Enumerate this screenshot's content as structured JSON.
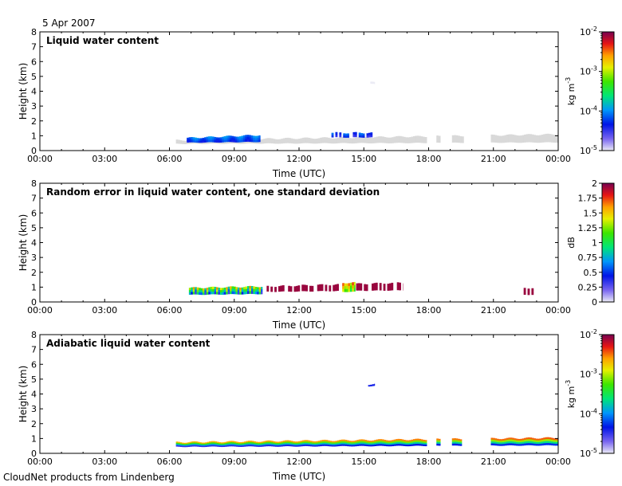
{
  "date_label": "5 Apr 2007",
  "footer": "CloudNet products from Lindenberg",
  "colors": {
    "missing": "#d9d9d9",
    "axis": "#000000"
  },
  "chart_data": [
    {
      "type": "heatmap",
      "title": "Liquid water content",
      "xlabel": "Time (UTC)",
      "ylabel": "Height (km)",
      "xlim": [
        0,
        24
      ],
      "ylim": [
        0,
        8
      ],
      "xticks": [
        "00:00",
        "03:00",
        "06:00",
        "09:00",
        "12:00",
        "15:00",
        "18:00",
        "21:00",
        "00:00"
      ],
      "yticks": [
        "0",
        "1",
        "2",
        "3",
        "4",
        "5",
        "6",
        "7",
        "8"
      ],
      "colorbar": {
        "label": "kg m",
        "label_sup": "-3",
        "scale": "log",
        "range": [
          1e-05,
          0.01
        ],
        "ticks": [
          {
            "base": "10",
            "exp": "-5"
          },
          {
            "base": "10",
            "exp": "-4"
          },
          {
            "base": "10",
            "exp": "-3"
          },
          {
            "base": "10",
            "exp": "-2"
          }
        ]
      },
      "layers": [
        {
          "name": "grey",
          "t0": 6.3,
          "t1": 24.0,
          "b0": 0.45,
          "b1": 0.55,
          "t0b": 0.7,
          "t1b": 1.1,
          "gaps": [
            [
              17.9,
              18.3
            ],
            [
              18.5,
              19.0
            ],
            [
              19.6,
              20.8
            ]
          ],
          "color_scale": [
            0,
            0
          ]
        },
        {
          "name": "lwc",
          "t0": 6.8,
          "t1": 10.2,
          "b0": 0.55,
          "b1": 0.6,
          "t0b": 0.85,
          "t1b": 1.05,
          "color_scale": [
            0.2,
            0.38
          ]
        },
        {
          "name": "lwc-patch",
          "t0": 13.5,
          "t1": 15.4,
          "b0": 0.9,
          "b1": 0.9,
          "t0b": 1.2,
          "t1b": 1.2,
          "color_scale": [
            0.15,
            0.35
          ],
          "sparse": true
        },
        {
          "name": "dot",
          "t0": 15.3,
          "t1": 15.5,
          "b0": 4.5,
          "b1": 4.5,
          "t0b": 4.6,
          "t1b": 4.6,
          "color_scale": [
            0,
            0
          ]
        }
      ]
    },
    {
      "type": "heatmap",
      "title": "Random error in liquid water content, one standard deviation",
      "xlabel": "Time (UTC)",
      "ylabel": "Height (km)",
      "xlim": [
        0,
        24
      ],
      "ylim": [
        0,
        8
      ],
      "xticks": [
        "00:00",
        "03:00",
        "06:00",
        "09:00",
        "12:00",
        "15:00",
        "18:00",
        "21:00",
        "00:00"
      ],
      "yticks": [
        "0",
        "1",
        "2",
        "3",
        "4",
        "5",
        "6",
        "7",
        "8"
      ],
      "colorbar": {
        "label": "dB",
        "label_sup": "",
        "scale": "linear",
        "range": [
          0,
          2
        ],
        "ticks": [
          {
            "base": "0"
          },
          {
            "base": "0.25"
          },
          {
            "base": "0.5"
          },
          {
            "base": "0.75"
          },
          {
            "base": "1"
          },
          {
            "base": "1.25"
          },
          {
            "base": "1.5"
          },
          {
            "base": "1.75"
          },
          {
            "base": "2"
          }
        ]
      },
      "layers": [
        {
          "name": "err",
          "t0": 6.9,
          "t1": 10.3,
          "b0": 0.5,
          "b1": 0.55,
          "t0b": 0.95,
          "t1b": 1.05,
          "color_scale": [
            0.15,
            0.95
          ],
          "striped": true
        },
        {
          "name": "err-sparse",
          "t0": 10.5,
          "t1": 16.8,
          "b0": 0.7,
          "b1": 0.8,
          "t0b": 1.05,
          "t1b": 1.3,
          "color_scale": [
            0.97,
            0.97
          ],
          "sparse": true
        },
        {
          "name": "err-patch",
          "t0": 14.0,
          "t1": 14.6,
          "b0": 0.7,
          "b1": 0.7,
          "t0b": 1.3,
          "t1b": 1.3,
          "color_scale": [
            0.5,
            0.95
          ],
          "striped": true
        },
        {
          "name": "err-late",
          "t0": 22.4,
          "t1": 22.9,
          "b0": 0.5,
          "b1": 0.5,
          "t0b": 0.95,
          "t1b": 0.95,
          "color_scale": [
            0.97,
            0.97
          ],
          "sparse": true
        }
      ]
    },
    {
      "type": "heatmap",
      "title": "Adiabatic liquid water content",
      "xlabel": "Time (UTC)",
      "ylabel": "Height (km)",
      "xlim": [
        0,
        24
      ],
      "ylim": [
        0,
        8
      ],
      "xticks": [
        "00:00",
        "03:00",
        "06:00",
        "09:00",
        "12:00",
        "15:00",
        "18:00",
        "21:00",
        "00:00"
      ],
      "yticks": [
        "0",
        "1",
        "2",
        "3",
        "4",
        "5",
        "6",
        "7",
        "8"
      ],
      "colorbar": {
        "label": "kg m",
        "label_sup": "-3",
        "scale": "log",
        "range": [
          1e-05,
          0.01
        ],
        "ticks": [
          {
            "base": "10",
            "exp": "-5"
          },
          {
            "base": "10",
            "exp": "-4"
          },
          {
            "base": "10",
            "exp": "-3"
          },
          {
            "base": "10",
            "exp": "-2"
          }
        ]
      },
      "layers": [
        {
          "name": "adiab",
          "t0": 6.3,
          "t1": 24.0,
          "b0": 0.45,
          "b1": 0.55,
          "t0b": 0.75,
          "t1b": 1.05,
          "gaps": [
            [
              17.9,
              18.3
            ],
            [
              18.5,
              19.0
            ],
            [
              19.5,
              20.8
            ]
          ],
          "color_scale": [
            0.25,
            0.85
          ],
          "vertical_grad": true
        },
        {
          "name": "adiab-dot",
          "t0": 15.2,
          "t1": 15.5,
          "b0": 4.55,
          "b1": 4.55,
          "t0b": 4.65,
          "t1b": 4.65,
          "color_scale": [
            0.2,
            0.2
          ]
        }
      ]
    }
  ]
}
